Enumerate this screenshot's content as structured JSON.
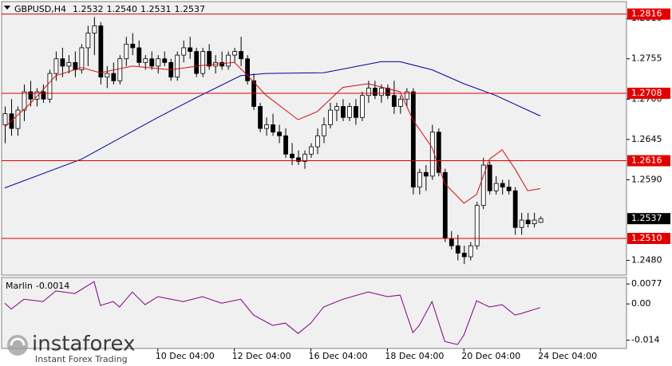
{
  "chart_data": [
    {
      "type": "candlestick",
      "title": "GBPUSD,H4",
      "ohlc": [
        [
          1.2665,
          1.269,
          1.264,
          1.268
        ],
        [
          1.268,
          1.27,
          1.265,
          1.266
        ],
        [
          1.266,
          1.269,
          1.265,
          1.2685
        ],
        [
          1.2685,
          1.272,
          1.267,
          1.271
        ],
        [
          1.271,
          1.2725,
          1.269,
          1.27
        ],
        [
          1.27,
          1.2715,
          1.269,
          1.271
        ],
        [
          1.271,
          1.272,
          1.2695,
          1.27
        ],
        [
          1.27,
          1.274,
          1.2695,
          1.2735
        ],
        [
          1.2735,
          1.2765,
          1.2725,
          1.2755
        ],
        [
          1.2755,
          1.277,
          1.273,
          1.2745
        ],
        [
          1.2745,
          1.276,
          1.2735,
          1.275
        ],
        [
          1.275,
          1.2765,
          1.273,
          1.274
        ],
        [
          1.274,
          1.2775,
          1.2735,
          1.277
        ],
        [
          1.277,
          1.28,
          1.2745,
          1.279
        ],
        [
          1.279,
          1.2812,
          1.276,
          1.28
        ],
        [
          1.28,
          1.2805,
          1.272,
          1.273
        ],
        [
          1.273,
          1.2745,
          1.2715,
          1.2735
        ],
        [
          1.2735,
          1.275,
          1.272,
          1.2725
        ],
        [
          1.2725,
          1.276,
          1.272,
          1.2755
        ],
        [
          1.2755,
          1.2785,
          1.2745,
          1.2775
        ],
        [
          1.2775,
          1.279,
          1.276,
          1.277
        ],
        [
          1.277,
          1.278,
          1.2745,
          1.275
        ],
        [
          1.275,
          1.276,
          1.274,
          1.2755
        ],
        [
          1.2755,
          1.2765,
          1.274,
          1.2745
        ],
        [
          1.2745,
          1.276,
          1.2735,
          1.2755
        ],
        [
          1.2755,
          1.2765,
          1.2745,
          1.275
        ],
        [
          1.275,
          1.2755,
          1.2725,
          1.273
        ],
        [
          1.273,
          1.2765,
          1.2725,
          1.276
        ],
        [
          1.276,
          1.278,
          1.275,
          1.277
        ],
        [
          1.277,
          1.2785,
          1.2755,
          1.2765
        ],
        [
          1.2765,
          1.277,
          1.273,
          1.2735
        ],
        [
          1.2735,
          1.277,
          1.273,
          1.2765
        ],
        [
          1.2765,
          1.2775,
          1.274,
          1.2745
        ],
        [
          1.2745,
          1.276,
          1.2735,
          1.275
        ],
        [
          1.275,
          1.2765,
          1.274,
          1.2745
        ],
        [
          1.2745,
          1.2765,
          1.274,
          1.276
        ],
        [
          1.276,
          1.277,
          1.275,
          1.2765
        ],
        [
          1.2765,
          1.2785,
          1.2745,
          1.2755
        ],
        [
          1.2755,
          1.276,
          1.272,
          1.2725
        ],
        [
          1.2725,
          1.2735,
          1.2685,
          1.269
        ],
        [
          1.269,
          1.2695,
          1.2655,
          1.266
        ],
        [
          1.266,
          1.2675,
          1.265,
          1.2665
        ],
        [
          1.2665,
          1.268,
          1.265,
          1.2655
        ],
        [
          1.2655,
          1.2665,
          1.264,
          1.265
        ],
        [
          1.265,
          1.266,
          1.262,
          1.2625
        ],
        [
          1.2625,
          1.264,
          1.261,
          1.262
        ],
        [
          1.262,
          1.263,
          1.261,
          1.2615
        ],
        [
          1.2615,
          1.263,
          1.2605,
          1.2625
        ],
        [
          1.2625,
          1.264,
          1.262,
          1.2635
        ],
        [
          1.2635,
          1.266,
          1.2625,
          1.265
        ],
        [
          1.265,
          1.2675,
          1.264,
          1.2665
        ],
        [
          1.2665,
          1.2695,
          1.266,
          1.2685
        ],
        [
          1.2685,
          1.2695,
          1.267,
          1.269
        ],
        [
          1.269,
          1.27,
          1.267,
          1.2675
        ],
        [
          1.2675,
          1.2695,
          1.267,
          1.269
        ],
        [
          1.269,
          1.27,
          1.2665,
          1.2675
        ],
        [
          1.2675,
          1.271,
          1.267,
          1.2705
        ],
        [
          1.2705,
          1.2725,
          1.2695,
          1.2715
        ],
        [
          1.2715,
          1.2725,
          1.27,
          1.2705
        ],
        [
          1.2705,
          1.272,
          1.2695,
          1.2715
        ],
        [
          1.2715,
          1.272,
          1.27,
          1.2705
        ],
        [
          1.2705,
          1.2725,
          1.268,
          1.269
        ],
        [
          1.269,
          1.2705,
          1.268,
          1.27
        ],
        [
          1.27,
          1.2715,
          1.269,
          1.271
        ],
        [
          1.271,
          1.2715,
          1.257,
          1.258
        ],
        [
          1.258,
          1.2605,
          1.257,
          1.26
        ],
        [
          1.26,
          1.261,
          1.2575,
          1.2595
        ],
        [
          1.2595,
          1.2665,
          1.259,
          1.2655
        ],
        [
          1.2655,
          1.266,
          1.2595,
          1.26
        ],
        [
          1.26,
          1.2605,
          1.2505,
          1.251
        ],
        [
          1.251,
          1.252,
          1.2495,
          1.25
        ],
        [
          1.25,
          1.2515,
          1.248,
          1.249
        ],
        [
          1.249,
          1.25,
          1.2475,
          1.2485
        ],
        [
          1.2485,
          1.2505,
          1.248,
          1.25
        ],
        [
          1.25,
          1.256,
          1.2495,
          1.2555
        ],
        [
          1.2555,
          1.262,
          1.255,
          1.261
        ],
        [
          1.261,
          1.2615,
          1.257,
          1.2575
        ],
        [
          1.2575,
          1.2595,
          1.257,
          1.2585
        ],
        [
          1.2585,
          1.259,
          1.257,
          1.258
        ],
        [
          1.258,
          1.259,
          1.257,
          1.2575
        ],
        [
          1.2575,
          1.258,
          1.2515,
          1.2525
        ],
        [
          1.2525,
          1.2545,
          1.2515,
          1.2535
        ],
        [
          1.2535,
          1.2545,
          1.2525,
          1.253
        ],
        [
          1.253,
          1.2545,
          1.2525,
          1.2535
        ],
        [
          1.2532,
          1.254,
          1.2531,
          1.2537
        ]
      ],
      "last_ohlc_labels": [
        "1.2532",
        "1.2540",
        "1.2531",
        "1.2537"
      ],
      "series": [
        {
          "color": "#0000a0",
          "x": [
            0,
            12,
            24,
            30,
            37,
            41,
            50,
            59,
            62,
            67,
            72,
            77,
            84
          ],
          "values": [
            1.2579,
            1.2618,
            1.2675,
            1.2702,
            1.2732,
            1.2735,
            1.2736,
            1.2751,
            1.2751,
            1.274,
            1.2721,
            1.2705,
            1.2677
          ]
        },
        {
          "color": "#d01010",
          "x": [
            0,
            4,
            8,
            12,
            15,
            20,
            26,
            31,
            36,
            38,
            41,
            46,
            49,
            53,
            57,
            62,
            64,
            67,
            69,
            72,
            74,
            76,
            78,
            80,
            82,
            84
          ],
          "values": [
            1.2662,
            1.2694,
            1.2732,
            1.2743,
            1.2736,
            1.2745,
            1.274,
            1.2746,
            1.275,
            1.2733,
            1.2705,
            1.2672,
            1.2683,
            1.2716,
            1.2721,
            1.271,
            1.2672,
            1.2634,
            1.2585,
            1.2558,
            1.257,
            1.2618,
            1.2631,
            1.2605,
            1.2575,
            1.2578
          ]
        }
      ],
      "levels": [
        1.2816,
        1.2708,
        1.2616,
        {
          "value": 1.251,
          "label": "1.2510"
        }
      ],
      "level_color": "#e00000",
      "bull_color": "#ffffff",
      "bear_color": "#000000",
      "xlim": [
        -0.5,
        97.5
      ],
      "xticks": [
        {
          "value": 24,
          "label": "10 Dec 04:00"
        },
        {
          "value": 36,
          "label": "12 Dec 04:00"
        },
        {
          "value": 48,
          "label": "16 Dec 04:00"
        },
        {
          "value": 60,
          "label": "18 Dec 04:00"
        },
        {
          "value": 72,
          "label": "20 Dec 04:00"
        },
        {
          "value": 84,
          "label": "24 Dec 04:00"
        }
      ],
      "ylim": [
        1.246,
        1.2833
      ],
      "yticks": [
        {
          "value": 1.281,
          "label": "1.2810"
        },
        1.2755,
        {
          "value": 1.27,
          "label": "1.2700"
        },
        1.2645,
        {
          "value": 1.259,
          "label": "1.2590"
        },
        {
          "value": 1.248,
          "label": "1.2480"
        }
      ]
    },
    {
      "type": "line",
      "title": "Marlin",
      "series": [
        {
          "color": "#800080",
          "x": [
            0,
            1,
            3,
            6,
            8,
            11,
            14,
            15,
            17,
            18,
            20,
            22,
            24,
            28,
            31,
            34,
            37,
            39,
            42,
            44,
            46,
            48,
            50,
            53,
            57,
            60,
            62,
            64,
            65,
            67,
            69,
            71,
            72,
            74,
            76,
            78,
            80,
            81,
            84
          ],
          "values": [
            0.0003,
            -0.002,
            0.0018,
            0.0009,
            0.005,
            0.004,
            0.0086,
            -0.0006,
            0.0009,
            -0.0012,
            0.0046,
            -0.0003,
            0.0028,
            0.0009,
            0.0028,
            0.0003,
            0.0018,
            -0.0043,
            -0.0083,
            -0.0074,
            -0.0114,
            -0.0074,
            -0.0012,
            0.0018,
            0.0046,
            0.0028,
            0.0034,
            -0.0111,
            -0.0083,
            0.0009,
            -0.0145,
            -0.0157,
            -0.012,
            0.0012,
            -0.0012,
            -0.0003,
            -0.0043,
            -0.0037,
            -0.0014
          ]
        }
      ],
      "ylim": [
        -0.0172,
        0.0102
      ],
      "yticks": [
        0.0077,
        {
          "value": 0,
          "label": "0.00"
        },
        -0.014
      ]
    }
  ],
  "logo": {
    "name": "instaforex",
    "tagline": "Instant Forex Trading"
  }
}
